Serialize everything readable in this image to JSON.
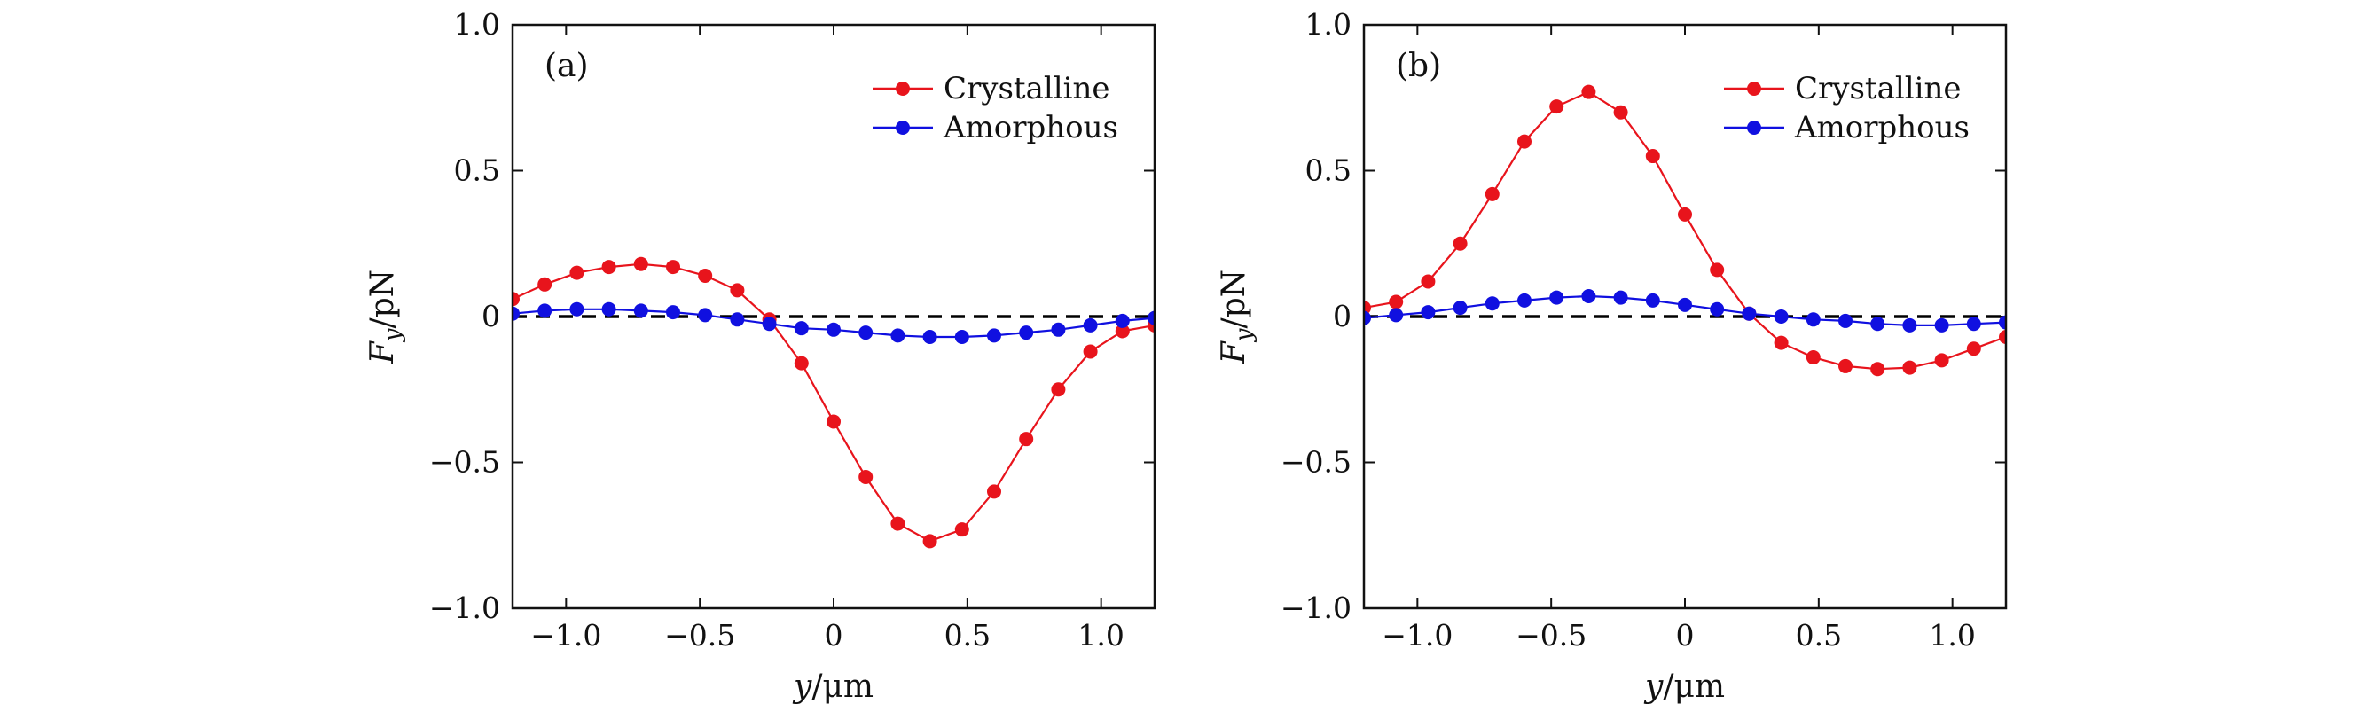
{
  "chart_data": [
    {
      "type": "line",
      "panel_label": "(a)",
      "xlabel": {
        "italic": "y",
        "rest": "/μm"
      },
      "ylabel": {
        "italic": "F",
        "sub": "y",
        "rest": "/pN"
      },
      "xlim": [
        -1.2,
        1.2
      ],
      "ylim": [
        -1.0,
        1.0
      ],
      "xticks": [
        -1.0,
        -0.5,
        0,
        0.5,
        1.0
      ],
      "xtick_labels": [
        "−1.0",
        "−0.5",
        "0",
        "0.5",
        "1.0"
      ],
      "yticks": [
        -1.0,
        -0.5,
        0,
        0.5,
        1.0
      ],
      "ytick_labels": [
        "−1.0",
        "−0.5",
        "0",
        "0.5",
        "1.0"
      ],
      "legend_position": "top-right",
      "reference_line": {
        "y": 0,
        "style": "dashed",
        "color": "#000000"
      },
      "x": [
        -1.2,
        -1.08,
        -0.96,
        -0.84,
        -0.72,
        -0.6,
        -0.48,
        -0.36,
        -0.24,
        -0.12,
        0.0,
        0.12,
        0.24,
        0.36,
        0.48,
        0.6,
        0.72,
        0.84,
        0.96,
        1.08,
        1.2
      ],
      "series": [
        {
          "name": "Crystalline",
          "color": "#e8141c",
          "values": [
            0.06,
            0.11,
            0.15,
            0.17,
            0.18,
            0.17,
            0.14,
            0.09,
            -0.01,
            -0.16,
            -0.36,
            -0.55,
            -0.71,
            -0.77,
            -0.73,
            -0.6,
            -0.42,
            -0.25,
            -0.12,
            -0.05,
            -0.03
          ]
        },
        {
          "name": "Amorphous",
          "color": "#1010e0",
          "values": [
            0.01,
            0.02,
            0.025,
            0.025,
            0.02,
            0.015,
            0.005,
            -0.01,
            -0.025,
            -0.04,
            -0.045,
            -0.055,
            -0.065,
            -0.07,
            -0.07,
            -0.065,
            -0.055,
            -0.045,
            -0.03,
            -0.015,
            -0.005
          ]
        }
      ]
    },
    {
      "type": "line",
      "panel_label": "(b)",
      "xlabel": {
        "italic": "y",
        "rest": "/μm"
      },
      "ylabel": {
        "italic": "F",
        "sub": "y",
        "rest": "/pN"
      },
      "xlim": [
        -1.2,
        1.2
      ],
      "ylim": [
        -1.0,
        1.0
      ],
      "xticks": [
        -1.0,
        -0.5,
        0,
        0.5,
        1.0
      ],
      "xtick_labels": [
        "−1.0",
        "−0.5",
        "0",
        "0.5",
        "1.0"
      ],
      "yticks": [
        -1.0,
        -0.5,
        0,
        0.5,
        1.0
      ],
      "ytick_labels": [
        "−1.0",
        "−0.5",
        "0",
        "0.5",
        "1.0"
      ],
      "legend_position": "top-right",
      "reference_line": {
        "y": 0,
        "style": "dashed",
        "color": "#000000"
      },
      "x": [
        -1.2,
        -1.08,
        -0.96,
        -0.84,
        -0.72,
        -0.6,
        -0.48,
        -0.36,
        -0.24,
        -0.12,
        0.0,
        0.12,
        0.24,
        0.36,
        0.48,
        0.6,
        0.72,
        0.84,
        0.96,
        1.08,
        1.2
      ],
      "series": [
        {
          "name": "Crystalline",
          "color": "#e8141c",
          "values": [
            0.03,
            0.05,
            0.12,
            0.25,
            0.42,
            0.6,
            0.72,
            0.77,
            0.7,
            0.55,
            0.35,
            0.16,
            0.01,
            -0.09,
            -0.14,
            -0.17,
            -0.18,
            -0.175,
            -0.15,
            -0.11,
            -0.07
          ]
        },
        {
          "name": "Amorphous",
          "color": "#1010e0",
          "values": [
            -0.005,
            0.005,
            0.015,
            0.03,
            0.045,
            0.055,
            0.065,
            0.07,
            0.065,
            0.055,
            0.04,
            0.025,
            0.01,
            0.0,
            -0.01,
            -0.015,
            -0.025,
            -0.03,
            -0.03,
            -0.025,
            -0.02
          ]
        }
      ]
    }
  ]
}
